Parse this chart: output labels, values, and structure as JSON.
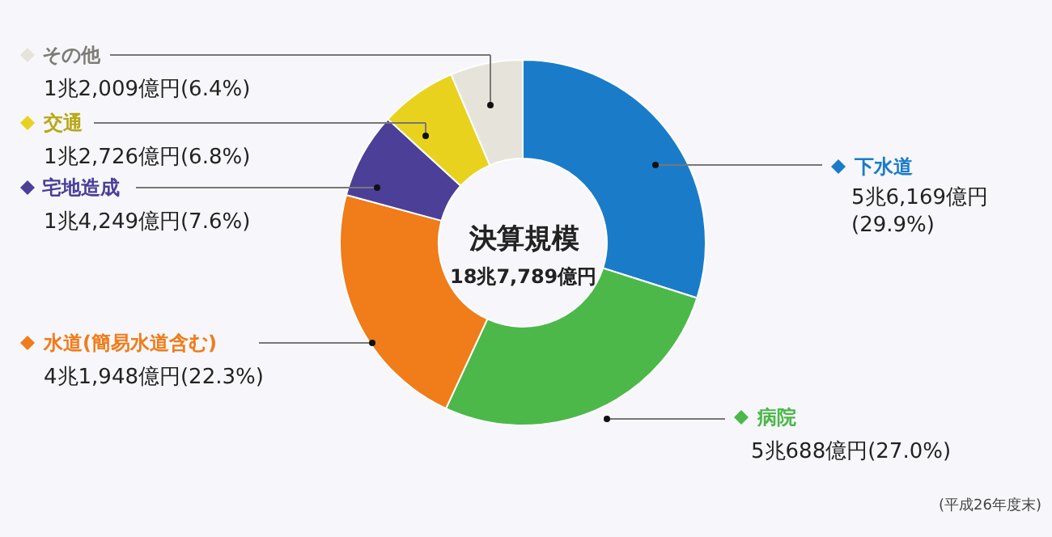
{
  "chart_data": {
    "type": "donut",
    "title": "決算規模",
    "subtitle": "18兆7,789億円",
    "categories": [
      "下水道",
      "病院",
      "水道(簡易水道含む)",
      "宅地造成",
      "交通",
      "その他"
    ],
    "values": [
      29.9,
      27.0,
      22.3,
      7.6,
      6.8,
      6.4
    ],
    "colors": [
      "#1a7cc8",
      "#4cb84a",
      "#f07c1a",
      "#4b3f98",
      "#e8d21e",
      "#e6e4da"
    ],
    "value_labels": [
      "5兆6,169億円(29.9%)",
      "5兆688億円(27.0%)",
      "4兆1,948億円(22.3%)",
      "1兆4,249億円(7.6%)",
      "1兆2,726億円(6.8%)",
      "1兆2,009億円(6.4%)"
    ],
    "annotations": [
      "(平成26年度末)"
    ],
    "legend": "left"
  }
}
